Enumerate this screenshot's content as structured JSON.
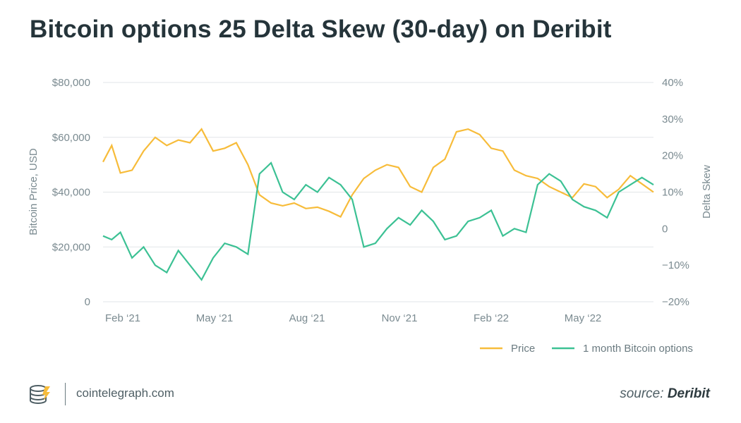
{
  "title": "Bitcoin options 25 Delta Skew (30-day) on Deribit",
  "footer": {
    "site": "cointelegraph.com",
    "source_prefix": "source:",
    "source_name": "Deribit"
  },
  "colors": {
    "price": "#f7bc3a",
    "skew": "#3cc194",
    "grid": "#e2e6e8",
    "text": "#7a8a90"
  },
  "chart_data": {
    "type": "line",
    "title": "Bitcoin options 25 Delta Skew (30-day) on Deribit",
    "x_tick_labels": [
      "Feb ‘21",
      "May ‘21",
      "Aug ‘21",
      "Nov ‘21",
      "Feb ‘22",
      "May ‘22"
    ],
    "y_left": {
      "label": "Bitcoin Price, USD",
      "range": [
        0,
        80000
      ],
      "ticks": [
        "0",
        "$20,000",
        "$40,000",
        "$60,000",
        "$80,000"
      ]
    },
    "y_right": {
      "label": "Delta Skew",
      "range": [
        -20,
        40
      ],
      "ticks": [
        "−20%",
        "−10%",
        "0",
        "10%",
        "20%",
        "30%",
        "40%"
      ]
    },
    "x_range": [
      0,
      19
    ],
    "series": [
      {
        "name": "Price",
        "axis": "left",
        "x": [
          0,
          0.3,
          0.6,
          1,
          1.4,
          1.8,
          2.2,
          2.6,
          3,
          3.4,
          3.8,
          4.2,
          4.6,
          5,
          5.4,
          5.8,
          6.2,
          6.6,
          7,
          7.4,
          7.8,
          8.2,
          8.6,
          9,
          9.4,
          9.8,
          10.2,
          10.6,
          11,
          11.4,
          11.8,
          12.2,
          12.6,
          13,
          13.4,
          13.8,
          14.2,
          14.6,
          15,
          15.4,
          15.8,
          16.2,
          16.6,
          17,
          17.4,
          17.8,
          18.2,
          18.6,
          19
        ],
        "values": [
          51000,
          57000,
          47000,
          48000,
          55000,
          60000,
          57000,
          59000,
          58000,
          63000,
          55000,
          56000,
          58000,
          50000,
          39000,
          36000,
          35000,
          36000,
          34000,
          34500,
          33000,
          31000,
          39000,
          45000,
          48000,
          50000,
          49000,
          42000,
          40000,
          49000,
          52000,
          62000,
          63000,
          61000,
          56000,
          55000,
          48000,
          46000,
          45000,
          42000,
          40000,
          38000,
          43000,
          42000,
          38000,
          41000,
          46000,
          43000,
          40000
        ]
      },
      {
        "name": "1 month Bitcoin options",
        "axis": "right",
        "x": [
          0,
          0.3,
          0.6,
          1,
          1.4,
          1.8,
          2.2,
          2.6,
          3,
          3.4,
          3.8,
          4.2,
          4.6,
          5,
          5.4,
          5.8,
          6.2,
          6.6,
          7,
          7.4,
          7.8,
          8.2,
          8.6,
          9,
          9.4,
          9.8,
          10.2,
          10.6,
          11,
          11.4,
          11.8,
          12.2,
          12.6,
          13,
          13.4,
          13.8,
          14.2,
          14.6,
          15,
          15.4,
          15.8,
          16.2,
          16.6,
          17,
          17.4,
          17.8,
          18.2,
          18.6,
          19
        ],
        "values": [
          -2,
          -3,
          -1,
          -8,
          -5,
          -10,
          -12,
          -6,
          -10,
          -14,
          -8,
          -4,
          -5,
          -7,
          15,
          18,
          10,
          8,
          12,
          10,
          14,
          12,
          8,
          -5,
          -4,
          0,
          3,
          1,
          5,
          2,
          -3,
          -2,
          2,
          3,
          5,
          -2,
          0,
          -1,
          12,
          15,
          13,
          8,
          6,
          5,
          3,
          10,
          12,
          14,
          12
        ]
      }
    ],
    "legend": [
      "Price",
      "1 month Bitcoin options"
    ],
    "legend_position": "bottom-right",
    "grid": true
  }
}
